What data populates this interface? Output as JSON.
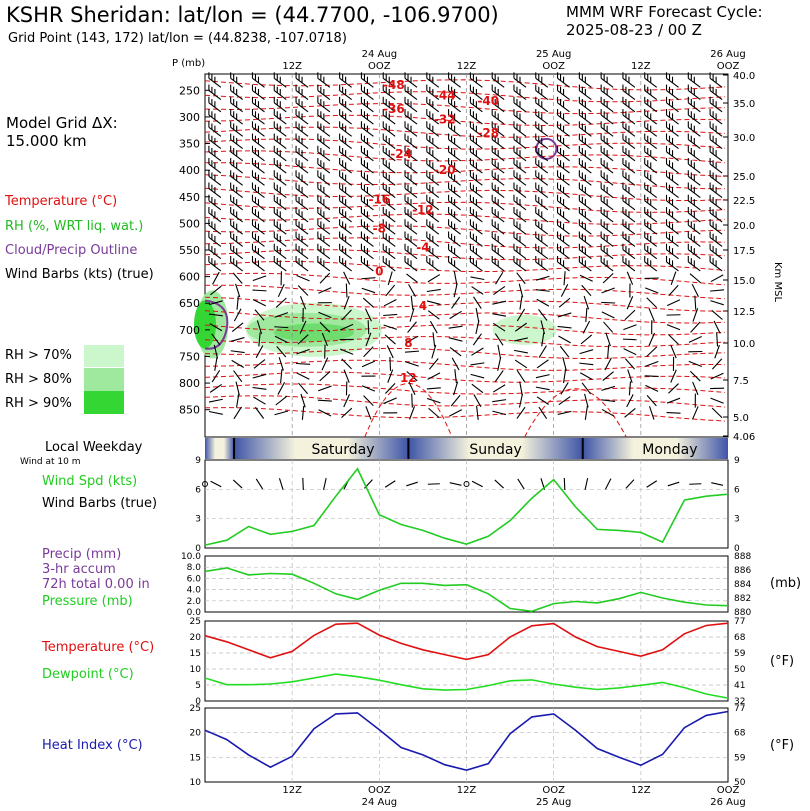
{
  "header": {
    "title": "KSHR Sheridan:  lat/lon = (44.7700, -106.9700)",
    "subtitle": "Grid Point (143, 172) lat/lon = (44.8238, -107.0718)",
    "cycle_line1": "MMM WRF Forecast Cycle:",
    "cycle_line2": "2025-08-23 / 00  Z"
  },
  "legend": {
    "model_grid": "Model Grid ΔX:",
    "model_grid_val": " 15.000 km",
    "temperature": "Temperature (°C)",
    "rh": "RH (%, WRT liq. wat.)",
    "cloud": "Cloud/Precip Outline",
    "wind": "Wind Barbs (kts) (true)",
    "rh70": "RH > 70%",
    "rh80": "RH > 80%",
    "rh90": "RH > 90%"
  },
  "colors": {
    "temperature": "#e01010",
    "rh": "#22cc22",
    "cloud": "#7a3a9a",
    "dewpoint": "#22dd22",
    "heat_index": "#1a1ab0",
    "rh70": "#ccf7cc",
    "rh80": "#9ee99e",
    "rh90": "#33d633",
    "day_band_dark": "#3f55a8",
    "day_band_light": "#f4f2dc"
  },
  "time_axis": {
    "top_labels": [
      {
        "t": 12,
        "line1": "",
        "line2": "12Z"
      },
      {
        "t": 24,
        "line1": "24 Aug",
        "line2": "OOZ"
      },
      {
        "t": 36,
        "line1": "",
        "line2": "12Z"
      },
      {
        "t": 48,
        "line1": "25 Aug",
        "line2": "OOZ"
      },
      {
        "t": 60,
        "line1": "",
        "line2": "12Z"
      },
      {
        "t": 72,
        "line1": "26 Aug",
        "line2": "OOZ"
      }
    ],
    "bottom_labels": [
      {
        "t": 12,
        "line1": "12Z",
        "line2": ""
      },
      {
        "t": 24,
        "line1": "OOZ",
        "line2": "24 Aug"
      },
      {
        "t": 36,
        "line1": "12Z",
        "line2": ""
      },
      {
        "t": 48,
        "line1": "OOZ",
        "line2": "25 Aug"
      },
      {
        "t": 60,
        "line1": "12Z",
        "line2": ""
      },
      {
        "t": 72,
        "line1": "OOZ",
        "line2": "26 Aug"
      }
    ]
  },
  "day_band": {
    "label_left": "Local Weekday",
    "label_sub": "Wind at 10 m",
    "days": [
      {
        "name": "Saturday",
        "t": 19
      },
      {
        "name": "Sunday",
        "t": 40
      },
      {
        "name": "Monday",
        "t": 64
      }
    ],
    "dividers": [
      4,
      28,
      52
    ]
  },
  "chart_data": [
    {
      "type": "contour",
      "panel": "sounding",
      "yaxis_title": "P (mb)",
      "y2_title": "Km MSL",
      "pressure_ticks": [
        250,
        300,
        350,
        400,
        450,
        500,
        550,
        600,
        650,
        700,
        750,
        800,
        850
      ],
      "height_ticks": [
        "40.0",
        "35.0",
        "30.0",
        "25.0",
        "22.5",
        "20.0",
        "17.5",
        "15.0",
        "12.5",
        "10.0",
        "7.5",
        "5.0",
        "4.06"
      ],
      "temperature_labels": [
        {
          "text": "-48",
          "t": 26,
          "p": 240
        },
        {
          "text": "-44",
          "t": 33,
          "p": 260
        },
        {
          "text": "-40",
          "t": 39,
          "p": 270
        },
        {
          "text": "-36",
          "t": 26,
          "p": 285
        },
        {
          "text": "-32",
          "t": 33,
          "p": 305
        },
        {
          "text": "-28",
          "t": 39,
          "p": 330
        },
        {
          "text": "-24",
          "t": 27,
          "p": 370
        },
        {
          "text": "-20",
          "t": 33,
          "p": 400
        },
        {
          "text": "-16",
          "t": 24,
          "p": 455
        },
        {
          "text": "-12",
          "t": 30,
          "p": 475
        },
        {
          "text": "-8",
          "t": 24,
          "p": 510
        },
        {
          "text": "-4",
          "t": 30,
          "p": 545
        },
        {
          "text": "0",
          "t": 24,
          "p": 590
        },
        {
          "text": "4",
          "t": 30,
          "p": 655
        },
        {
          "text": "8",
          "t": 28,
          "p": 725
        },
        {
          "text": "12",
          "t": 28,
          "p": 790
        }
      ]
    },
    {
      "type": "line",
      "panel": "wind",
      "ylabel_left": "Wind Spd (kts)",
      "ylabel_left2": "Wind Barbs (true)",
      "ylim": [
        0,
        9
      ],
      "yticks": [
        0,
        3,
        6,
        9
      ],
      "series": [
        {
          "name": "Wind Spd (kts)",
          "x": [
            0,
            3,
            6,
            9,
            12,
            15,
            18,
            21,
            24,
            27,
            30,
            33,
            36,
            39,
            42,
            45,
            48,
            51,
            54,
            57,
            60,
            63,
            66,
            69,
            72
          ],
          "values": [
            0.3,
            0.8,
            2.2,
            1.4,
            1.7,
            2.3,
            5.3,
            8.1,
            3.4,
            2.4,
            1.8,
            1.0,
            0.4,
            1.2,
            2.8,
            5.1,
            7.0,
            4.2,
            1.9,
            1.8,
            1.6,
            0.6,
            4.9,
            5.3,
            5.5
          ]
        }
      ]
    },
    {
      "type": "line",
      "panel": "precip",
      "ylabel_left": "Precip (mm)",
      "ylabel_left2": "3-hr accum",
      "ylabel_left3": "72h total 0.00 in",
      "ylabel_left4": "Pressure (mb)",
      "ylabel_right": "(mb)",
      "ylim": [
        0,
        10
      ],
      "yticks": [
        "0.0",
        "2.0",
        "4.0",
        "6.0",
        "8.0",
        "10.0"
      ],
      "y2lim": [
        880,
        888
      ],
      "y2ticks": [
        880,
        882,
        884,
        886,
        888
      ],
      "series": [
        {
          "name": "Pressure (mb)",
          "x": [
            0,
            3,
            6,
            9,
            12,
            15,
            18,
            21,
            24,
            27,
            30,
            33,
            36,
            39,
            42,
            45,
            48,
            51,
            54,
            57,
            60,
            63,
            66,
            69,
            72
          ],
          "values": [
            885.8,
            886.3,
            885.3,
            885.5,
            885.4,
            884.1,
            882.6,
            881.8,
            883.1,
            884.1,
            884.1,
            883.8,
            883.9,
            882.6,
            880.5,
            880.1,
            881.2,
            881.5,
            881.3,
            881.9,
            882.8,
            882.0,
            881.4,
            881.0,
            880.9
          ]
        },
        {
          "name": "Precip (mm)",
          "x": [
            0,
            72
          ],
          "values": [
            0,
            0
          ]
        }
      ]
    },
    {
      "type": "line",
      "panel": "temp_dew",
      "ylabel_left": "Temperature (°C)",
      "ylabel_left2": "Dewpoint (°C)",
      "ylabel_right": "(°F)",
      "ylim": [
        0,
        25
      ],
      "yticks": [
        0,
        5,
        10,
        15,
        20,
        25
      ],
      "y2ticks": [
        32,
        41,
        50,
        59,
        68,
        77
      ],
      "series": [
        {
          "name": "Temperature (°C)",
          "x": [
            0,
            3,
            6,
            9,
            12,
            15,
            18,
            21,
            24,
            27,
            30,
            33,
            36,
            39,
            42,
            45,
            48,
            51,
            54,
            57,
            60,
            63,
            66,
            69,
            72
          ],
          "values": [
            20.4,
            18.5,
            16.0,
            13.5,
            15.5,
            20.5,
            24.0,
            24.3,
            20.6,
            18.0,
            16.0,
            14.5,
            13.0,
            14.5,
            20.0,
            23.5,
            24.2,
            20.0,
            17.0,
            15.5,
            14.0,
            16.0,
            21.0,
            23.6,
            24.3
          ]
        },
        {
          "name": "Dewpoint (°C)",
          "x": [
            0,
            3,
            6,
            9,
            12,
            15,
            18,
            21,
            24,
            27,
            30,
            33,
            36,
            39,
            42,
            45,
            48,
            51,
            54,
            57,
            60,
            63,
            66,
            69,
            72
          ],
          "values": [
            7.2,
            5.1,
            5.1,
            5.3,
            6.0,
            7.2,
            8.4,
            7.6,
            6.5,
            5.1,
            3.8,
            3.4,
            3.6,
            4.8,
            6.3,
            6.6,
            5.3,
            4.3,
            3.6,
            4.1,
            4.9,
            5.8,
            4.2,
            2.2,
            0.9
          ]
        }
      ]
    },
    {
      "type": "line",
      "panel": "heat_index",
      "ylabel_left": "Heat Index (°C)",
      "ylabel_right": "(°F)",
      "ylim": [
        10,
        25
      ],
      "yticks": [
        10,
        15,
        20,
        25
      ],
      "y2ticks": [
        50,
        59,
        68,
        77
      ],
      "series": [
        {
          "name": "Heat Index (°C)",
          "x": [
            0,
            3,
            6,
            9,
            12,
            15,
            18,
            21,
            24,
            27,
            30,
            33,
            36,
            39,
            42,
            45,
            48,
            51,
            54,
            57,
            60,
            63,
            66,
            69,
            72
          ],
          "values": [
            20.5,
            18.6,
            15.5,
            13.0,
            15.2,
            20.8,
            23.8,
            24.0,
            20.6,
            17.0,
            15.5,
            13.5,
            12.4,
            13.7,
            19.8,
            23.2,
            23.8,
            20.5,
            16.8,
            15.0,
            13.4,
            15.6,
            21.0,
            23.5,
            24.3
          ]
        }
      ]
    }
  ]
}
